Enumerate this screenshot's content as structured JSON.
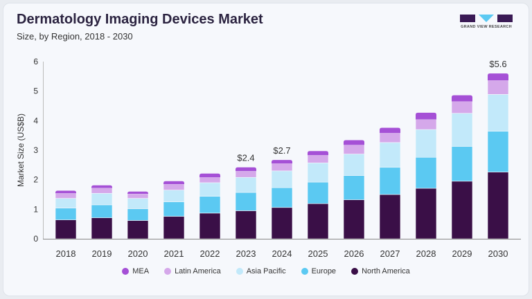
{
  "header": {
    "title": "Dermatology Imaging Devices Market",
    "subtitle": "Size, by Region, 2018 - 2030"
  },
  "logo": {
    "text": "GRAND VIEW RESEARCH"
  },
  "chart_data": {
    "type": "bar",
    "stacked": true,
    "title": "Dermatology Imaging Devices Market",
    "subtitle": "Size, by Region, 2018 - 2030",
    "xlabel": "",
    "ylabel": "Market Size (US$B)",
    "ylim": [
      0,
      6
    ],
    "yticks": [
      "0",
      "1",
      "2",
      "3",
      "4",
      "5",
      "6"
    ],
    "categories": [
      "2018",
      "2019",
      "2020",
      "2021",
      "2022",
      "2023",
      "2024",
      "2025",
      "2026",
      "2027",
      "2028",
      "2029",
      "2030"
    ],
    "series": [
      {
        "name": "North America",
        "color": "#3a0f47",
        "values": [
          0.64,
          0.71,
          0.62,
          0.76,
          0.87,
          0.95,
          1.06,
          1.19,
          1.32,
          1.5,
          1.71,
          1.95,
          2.26
        ]
      },
      {
        "name": "Europe",
        "color": "#5bc9f2",
        "values": [
          0.4,
          0.44,
          0.4,
          0.49,
          0.57,
          0.62,
          0.67,
          0.73,
          0.82,
          0.92,
          1.05,
          1.18,
          1.38
        ]
      },
      {
        "name": "Asia Pacific",
        "color": "#c2e9fa",
        "values": [
          0.33,
          0.39,
          0.35,
          0.4,
          0.46,
          0.51,
          0.57,
          0.65,
          0.73,
          0.84,
          0.94,
          1.12,
          1.25
        ]
      },
      {
        "name": "Latin America",
        "color": "#d5a8ea",
        "values": [
          0.17,
          0.18,
          0.15,
          0.2,
          0.18,
          0.21,
          0.25,
          0.26,
          0.31,
          0.32,
          0.34,
          0.4,
          0.47
        ]
      },
      {
        "name": "MEA",
        "color": "#a550d6",
        "values": [
          0.09,
          0.09,
          0.08,
          0.1,
          0.13,
          0.13,
          0.12,
          0.14,
          0.16,
          0.18,
          0.23,
          0.21,
          0.24
        ]
      }
    ],
    "annotations": [
      {
        "category": "2023",
        "text": "$2.4"
      },
      {
        "category": "2024",
        "text": "$2.7"
      },
      {
        "category": "2030",
        "text": "$5.6"
      }
    ],
    "grid": false,
    "legend_position": "bottom",
    "legend_order": [
      "MEA",
      "Latin America",
      "Asia Pacific",
      "Europe",
      "North America"
    ]
  }
}
